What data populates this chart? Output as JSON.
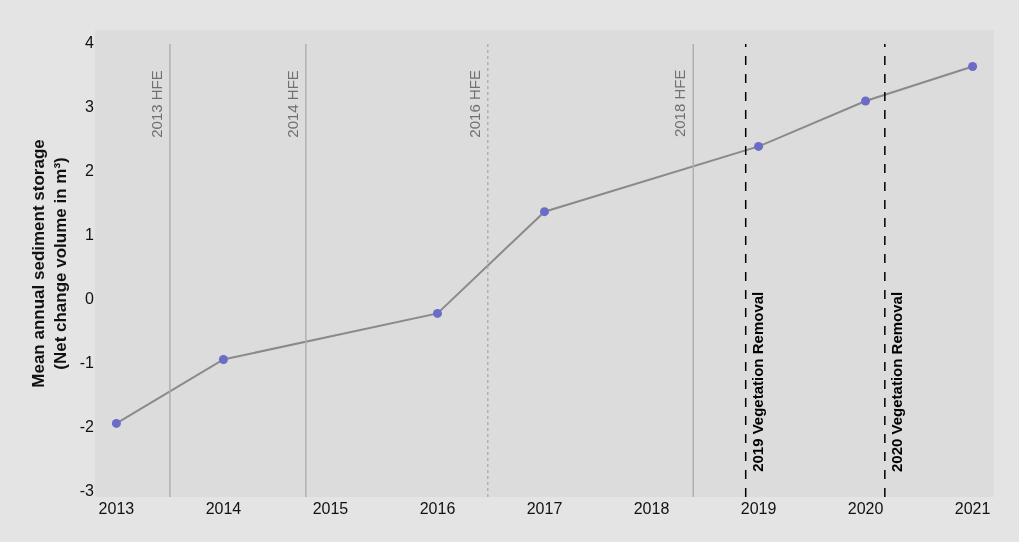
{
  "chart_data": {
    "type": "line",
    "ylabel": "Mean annual sediment storage\n(Net change volume in m³)",
    "x": [
      2013,
      2014,
      2016,
      2017,
      2019,
      2020,
      2021
    ],
    "series": [
      {
        "color": "#6b6bc8",
        "values": [
          -1.95,
          -0.95,
          -0.23,
          1.36,
          2.38,
          3.09,
          3.63
        ]
      }
    ],
    "xlim": [
      2012.8,
      2021.2
    ],
    "xticks": [
      2013,
      2014,
      2015,
      2016,
      2017,
      2018,
      2019,
      2020,
      2021
    ],
    "ylim": [
      -3.1,
      4.2
    ],
    "yticks": [
      -3,
      -2,
      -1,
      0,
      1,
      2,
      3,
      4
    ],
    "ref_lines": [
      {
        "axis": "x",
        "value": 2013.5,
        "label": "2013 HFE",
        "color": "#b0b0b0",
        "line_style": "solid"
      },
      {
        "axis": "x",
        "value": 2014.77,
        "label": "2014 HFE",
        "color": "#b0b0b0",
        "line_style": "solid"
      },
      {
        "axis": "x",
        "value": 2016.47,
        "label": "2016 HFE",
        "color": "#b0b0b0",
        "line_style": "dotted"
      },
      {
        "axis": "x",
        "value": 2018.39,
        "label": "2018 HFE",
        "color": "#b0b0b0",
        "line_style": "solid"
      },
      {
        "axis": "x",
        "value": 2018.88,
        "label": "2019 Vegetation Removal",
        "color": "#000000",
        "line_style": "dashed"
      },
      {
        "axis": "x",
        "value": 2020.18,
        "label": "2020 Vegetation Removal",
        "color": "#000000",
        "line_style": "dashed"
      }
    ],
    "marker": "circle",
    "line_style": "solid",
    "grid": false
  }
}
